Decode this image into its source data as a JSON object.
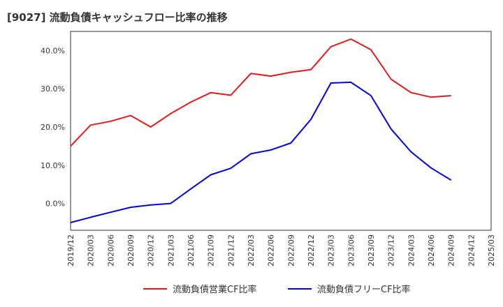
{
  "chart_data": {
    "type": "line",
    "title": "[9027]  流動負債キャッシュフロー比率の推移",
    "x": [
      "2019/12",
      "2020/03",
      "2020/06",
      "2020/09",
      "2020/12",
      "2021/03",
      "2021/06",
      "2021/09",
      "2021/12",
      "2022/03",
      "2022/06",
      "2022/09",
      "2022/12",
      "2023/03",
      "2023/06",
      "2023/09",
      "2023/12",
      "2024/03",
      "2024/06",
      "2024/09",
      "2024/12",
      "2025/03"
    ],
    "ylim": [
      -7,
      45
    ],
    "yticks": [
      0,
      10,
      20,
      30,
      40
    ],
    "ytick_labels": [
      "0.0%",
      "10.0%",
      "20.0%",
      "30.0%",
      "40.0%"
    ],
    "grid": true,
    "legend_position": "bottom",
    "series": [
      {
        "name": "流動負債営業CF比率",
        "color": "#e31a1c",
        "values": [
          15.0,
          20.5,
          21.5,
          23.0,
          20.0,
          23.5,
          26.5,
          29.0,
          28.3,
          34.0,
          33.3,
          34.3,
          35.0,
          41.0,
          43.0,
          40.2,
          32.5,
          29.0,
          27.8,
          28.2,
          null,
          null
        ]
      },
      {
        "name": "流動負債フリーCF比率",
        "color": "#0000dd",
        "values": [
          -5.0,
          -3.6,
          -2.3,
          -1.0,
          -0.4,
          0.0,
          3.8,
          7.5,
          9.2,
          13.0,
          14.0,
          15.8,
          22.0,
          31.5,
          31.7,
          28.2,
          19.5,
          13.5,
          9.3,
          6.1,
          null,
          null
        ]
      }
    ]
  }
}
